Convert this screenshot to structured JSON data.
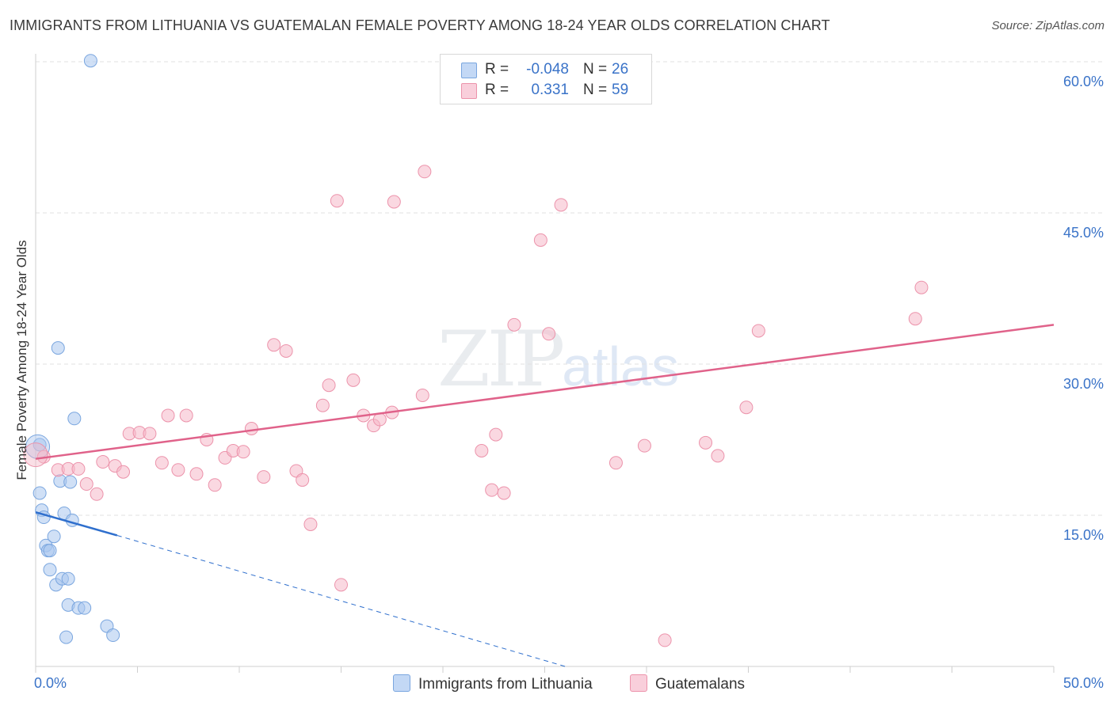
{
  "header": {
    "title": "IMMIGRANTS FROM LITHUANIA VS GUATEMALAN FEMALE POVERTY AMONG 18-24 YEAR OLDS CORRELATION CHART",
    "source": "Source: ZipAtlas.com"
  },
  "watermark": {
    "zip": "ZIP",
    "atlas": "atlas"
  },
  "legend": {
    "r_label": "R =",
    "n_label": "N =",
    "rows": [
      {
        "r": "-0.048",
        "n": "26",
        "color": "#a9c6ef"
      },
      {
        "r": "0.331",
        "n": "59",
        "color": "#f5b8c8"
      }
    ]
  },
  "bottom_legend": [
    {
      "label": "Immigrants from Lithuania",
      "color": "#a9c6ef"
    },
    {
      "label": "Guatemalans",
      "color": "#f5b8c8"
    }
  ],
  "chart_data": {
    "type": "scatter",
    "title": "IMMIGRANTS FROM LITHUANIA VS GUATEMALAN FEMALE POVERTY AMONG 18-24 YEAR OLDS CORRELATION CHART",
    "xlabel": "",
    "ylabel": "Female Poverty Among 18-24 Year Olds",
    "xlim": [
      0,
      50
    ],
    "ylim": [
      0,
      60
    ],
    "x_tick_labels": [
      "0.0%",
      "50.0%"
    ],
    "y_tick_labels": [
      "15.0%",
      "30.0%",
      "45.0%",
      "60.0%"
    ],
    "y_ticks": [
      15,
      30,
      45,
      60
    ],
    "x_minor_ticks": [
      0,
      5,
      10,
      15,
      20,
      25,
      30,
      35,
      40,
      45,
      50
    ],
    "series": [
      {
        "name": "Immigrants from Lithuania",
        "color": "#a9c6ef",
        "stroke": "#7aa6df",
        "trend_color": "#2f6fcd",
        "trend": {
          "x0": 0,
          "y0": 15.3,
          "x1": 4.0,
          "y1": 13.0,
          "dash_to_x": 26.0,
          "dash_to_y": 0.0
        },
        "points": [
          [
            0.2,
            22.0
          ],
          [
            0.2,
            17.2
          ],
          [
            0.3,
            15.5
          ],
          [
            0.4,
            14.8
          ],
          [
            0.5,
            12.0
          ],
          [
            0.6,
            11.5
          ],
          [
            0.7,
            11.5
          ],
          [
            0.7,
            9.6
          ],
          [
            0.9,
            12.9
          ],
          [
            1.0,
            8.1
          ],
          [
            1.1,
            31.6
          ],
          [
            1.2,
            18.4
          ],
          [
            1.3,
            8.7
          ],
          [
            1.4,
            15.2
          ],
          [
            1.5,
            2.9
          ],
          [
            1.6,
            6.1
          ],
          [
            1.6,
            8.7
          ],
          [
            1.7,
            18.3
          ],
          [
            1.8,
            14.5
          ],
          [
            1.9,
            24.6
          ],
          [
            2.1,
            5.8
          ],
          [
            2.4,
            5.8
          ],
          [
            2.7,
            60.1
          ],
          [
            3.5,
            4.0
          ],
          [
            3.8,
            3.1
          ],
          [
            0.1,
            21.8
          ]
        ]
      },
      {
        "name": "Guatemalans",
        "color": "#f5b8c8",
        "stroke": "#ec93ab",
        "trend_color": "#e0628a",
        "trend": {
          "x0": 0,
          "y0": 20.6,
          "x1": 50,
          "y1": 33.9
        },
        "points": [
          [
            0.4,
            20.8
          ],
          [
            1.1,
            19.5
          ],
          [
            1.6,
            19.6
          ],
          [
            2.1,
            19.6
          ],
          [
            2.5,
            18.1
          ],
          [
            3.0,
            17.1
          ],
          [
            3.3,
            20.3
          ],
          [
            3.9,
            19.9
          ],
          [
            4.3,
            19.3
          ],
          [
            4.6,
            23.1
          ],
          [
            5.1,
            23.2
          ],
          [
            5.6,
            23.1
          ],
          [
            6.2,
            20.2
          ],
          [
            6.5,
            24.9
          ],
          [
            7.0,
            19.5
          ],
          [
            7.4,
            24.9
          ],
          [
            7.9,
            19.1
          ],
          [
            8.4,
            22.5
          ],
          [
            8.8,
            18.0
          ],
          [
            9.3,
            20.7
          ],
          [
            9.7,
            21.4
          ],
          [
            10.2,
            21.3
          ],
          [
            10.6,
            23.6
          ],
          [
            11.2,
            18.8
          ],
          [
            11.7,
            31.9
          ],
          [
            12.3,
            31.3
          ],
          [
            12.8,
            19.4
          ],
          [
            13.1,
            18.5
          ],
          [
            13.5,
            14.1
          ],
          [
            14.1,
            25.9
          ],
          [
            14.4,
            27.9
          ],
          [
            14.8,
            46.2
          ],
          [
            15.0,
            8.1
          ],
          [
            15.6,
            28.4
          ],
          [
            16.1,
            24.9
          ],
          [
            16.6,
            23.9
          ],
          [
            16.9,
            24.5
          ],
          [
            17.5,
            25.2
          ],
          [
            17.6,
            46.1
          ],
          [
            19.0,
            26.9
          ],
          [
            19.1,
            49.1
          ],
          [
            21.9,
            21.4
          ],
          [
            22.4,
            17.5
          ],
          [
            22.6,
            23.0
          ],
          [
            23.0,
            17.2
          ],
          [
            23.5,
            33.9
          ],
          [
            24.8,
            42.3
          ],
          [
            25.2,
            33.0
          ],
          [
            25.8,
            45.8
          ],
          [
            28.5,
            20.2
          ],
          [
            29.9,
            21.9
          ],
          [
            30.9,
            2.6
          ],
          [
            32.9,
            22.2
          ],
          [
            33.5,
            20.9
          ],
          [
            34.9,
            25.7
          ],
          [
            35.5,
            33.3
          ],
          [
            43.2,
            34.5
          ],
          [
            43.5,
            37.6
          ],
          [
            0.0,
            21.0
          ]
        ]
      }
    ]
  }
}
